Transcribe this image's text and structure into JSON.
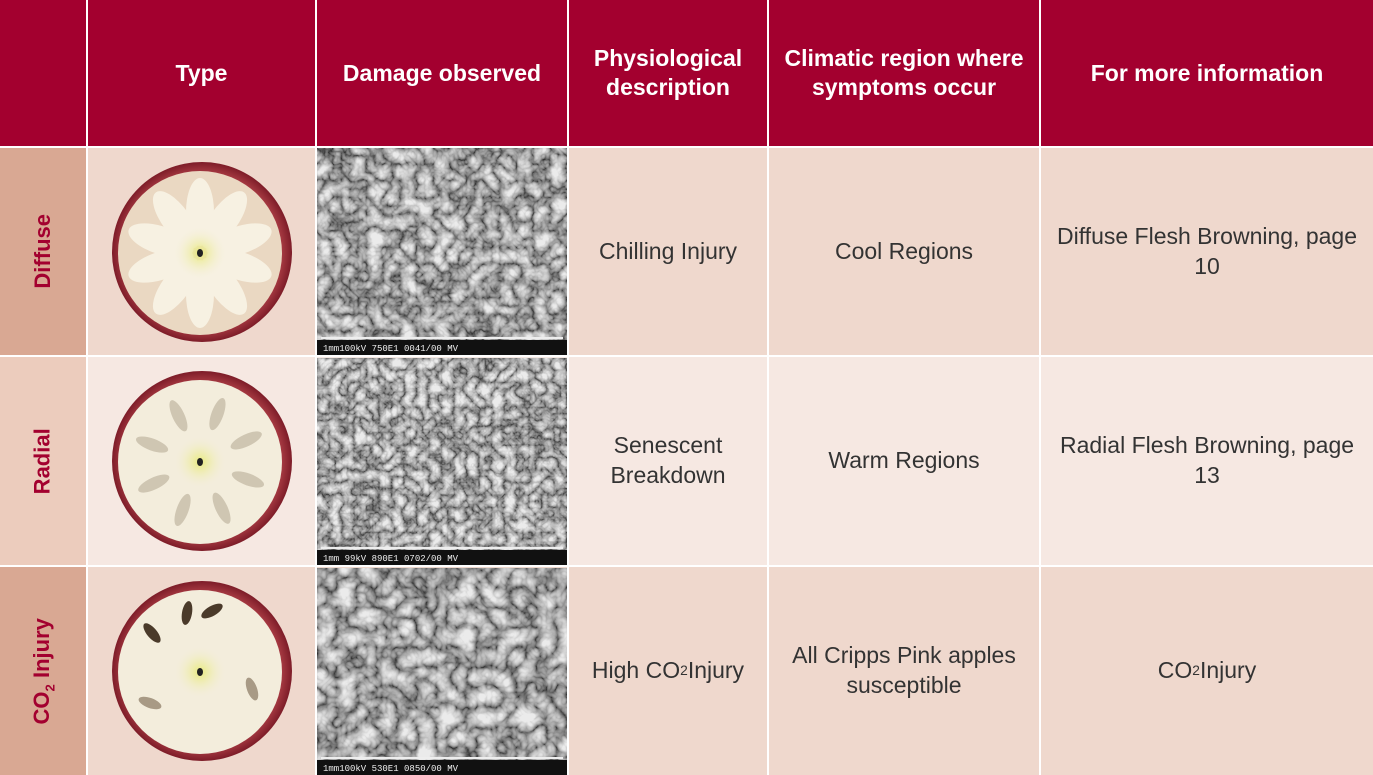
{
  "table": {
    "headers": [
      "Type",
      "Damage observed",
      "Physiological description",
      "Climatic region where symptoms occur",
      "For more information"
    ],
    "rows": [
      {
        "label": {
          "text": "Diffuse"
        },
        "image_caption": "1mm100kV 750E1 0041/00 MV",
        "physiological": {
          "text": "Chilling Injury"
        },
        "climatic": "Cool Regions",
        "info": {
          "text": "Diffuse Flesh Browning, page 10"
        }
      },
      {
        "label": {
          "text": "Radial"
        },
        "image_caption": "1mm 99kV 890E1 0702/00 MV",
        "physiological": {
          "text": "Senescent Breakdown"
        },
        "climatic": "Warm Regions",
        "info": {
          "text": "Radial Flesh Browning, page 13"
        }
      },
      {
        "label": {
          "text": "CO",
          "sub": "2",
          "after": " Injury"
        },
        "image_caption": "1mm100kV 530E1 0850/00 MV",
        "physiological": {
          "text": "High CO",
          "sub": "2",
          "after": "Injury"
        },
        "climatic": "All Cripps Pink apples susceptible",
        "info": {
          "text": "CO",
          "sup": "2",
          "after": " Injury"
        }
      }
    ]
  }
}
